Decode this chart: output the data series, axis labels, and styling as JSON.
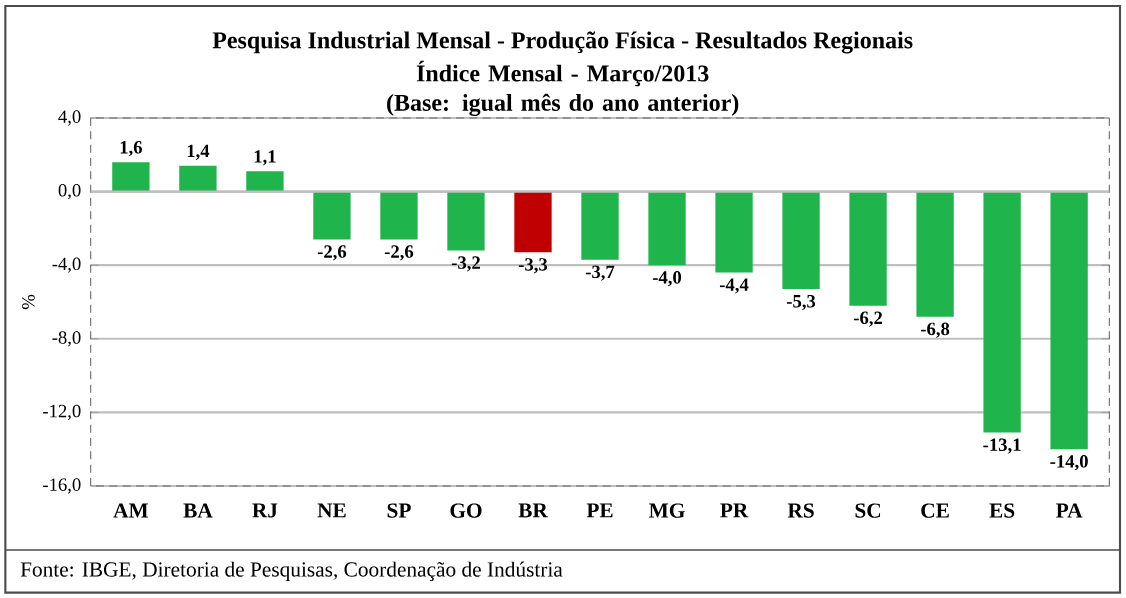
{
  "chart_data": {
    "type": "bar",
    "title": "Pesquisa Industrial Mensal - Produção Física - Resultados Regionais",
    "subtitle": "Índice Mensal - Março/2013\n(Base: igual mês do ano anterior)",
    "ylabel": "%",
    "categories": [
      "AM",
      "BA",
      "RJ",
      "NE",
      "SP",
      "GO",
      "BR",
      "PE",
      "MG",
      "PR",
      "RS",
      "SC",
      "CE",
      "ES",
      "PA"
    ],
    "values": [
      1.6,
      1.4,
      1.1,
      -2.6,
      -2.6,
      -3.2,
      -3.3,
      -3.7,
      -4.0,
      -4.4,
      -5.3,
      -6.2,
      -6.8,
      -13.1,
      -14.0
    ],
    "value_labels": [
      "1,6",
      "1,4",
      "1,1",
      "-2,6",
      "-2,6",
      "-3,2",
      "-3,3",
      "-3,7",
      "-4,0",
      "-4,4",
      "-5,3",
      "-6,2",
      "-6,8",
      "-13,1",
      "-14,0"
    ],
    "colors": [
      "#1fb54c",
      "#1fb54c",
      "#1fb54c",
      "#1fb54c",
      "#1fb54c",
      "#1fb54c",
      "#c00000",
      "#1fb54c",
      "#1fb54c",
      "#1fb54c",
      "#1fb54c",
      "#1fb54c",
      "#1fb54c",
      "#1fb54c",
      "#1fb54c"
    ],
    "ylim": [
      -16,
      4
    ],
    "yticks": [
      {
        "value": 4,
        "label": "4,0"
      },
      {
        "value": 0,
        "label": "0,0"
      },
      {
        "value": -4,
        "label": "-4,0"
      },
      {
        "value": -8,
        "label": "-8,0"
      },
      {
        "value": -12,
        "label": "-12,0"
      },
      {
        "value": -16,
        "label": "-16,0"
      }
    ],
    "grid": "y",
    "annotations": [
      "Fonte: IBGE, Diretoria de Pesquisas, Coordenação de Indústria"
    ]
  }
}
